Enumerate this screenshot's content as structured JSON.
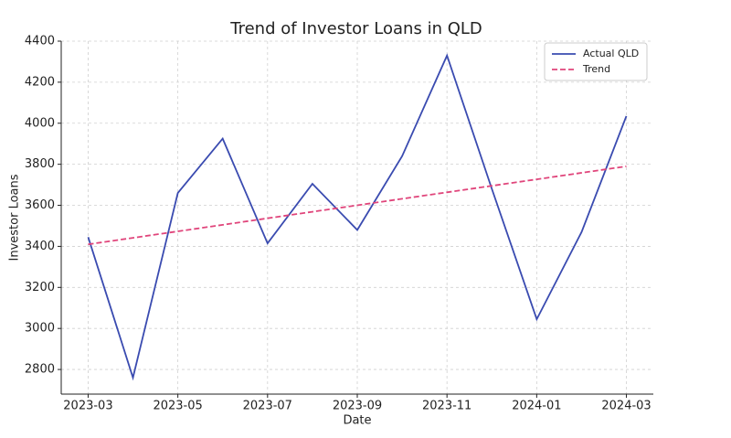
{
  "chart_data": {
    "type": "line",
    "title": "Trend of Investor Loans in QLD",
    "x_label": "Date",
    "y_label": "Investor Loans",
    "x": [
      "2023-03",
      "2023-04",
      "2023-05",
      "2023-06",
      "2023-07",
      "2023-08",
      "2023-09",
      "2023-10",
      "2023-11",
      "2023-12",
      "2024-01",
      "2024-02",
      "2024-03"
    ],
    "series": [
      {
        "name": "Actual QLD",
        "color": "#3a4bb0",
        "style": "solid",
        "values": [
          3445,
          2760,
          3660,
          3925,
          3415,
          3705,
          3480,
          3840,
          4330,
          3680,
          3045,
          3470,
          4035
        ]
      },
      {
        "name": "Trend",
        "color": "#e0457b",
        "style": "dashed",
        "values": [
          3410,
          3441.7,
          3473.3,
          3505,
          3536.7,
          3568.3,
          3600,
          3631.7,
          3663.3,
          3695,
          3726.7,
          3758.3,
          3790
        ]
      }
    ],
    "xticks": [
      "2023-03",
      "2023-05",
      "2023-07",
      "2023-09",
      "2023-11",
      "2024-01",
      "2024-03"
    ],
    "ylim": [
      2680,
      4400
    ],
    "yticks": [
      2800,
      3000,
      3200,
      3400,
      3600,
      3800,
      4000,
      4200,
      4400
    ],
    "grid": true,
    "legend": "upper right"
  }
}
